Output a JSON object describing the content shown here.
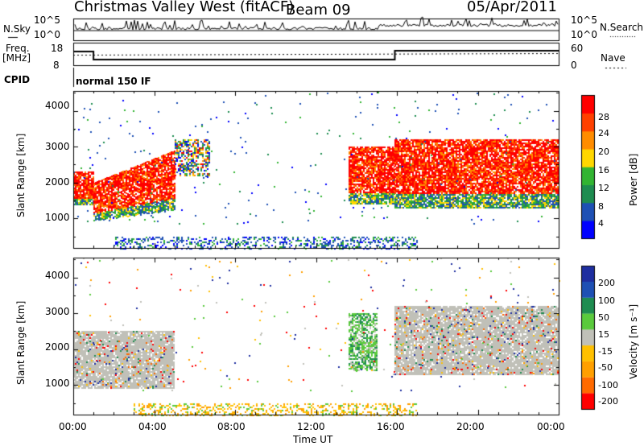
{
  "header": {
    "station": "Christmas Valley West (fitACF)",
    "beam": "Beam 09",
    "date": "05/Apr/2011"
  },
  "aux_panels": {
    "nsky": {
      "left_label": "N.Sky",
      "right_label": "N.Search",
      "left_ticks": [
        "10^5",
        "10^0"
      ],
      "right_ticks": [
        "10^5",
        "10^0"
      ]
    },
    "freq": {
      "left_label_line1": "Freq.",
      "left_label_line2": "[MHz]",
      "right_label": "Nave",
      "left_ticks": [
        "18",
        "8"
      ],
      "right_ticks": [
        "60",
        "0"
      ]
    },
    "cpid": {
      "label": "CPID",
      "mode": "normal 150 IF"
    }
  },
  "chart_data": [
    {
      "type": "heatmap",
      "panel": "power",
      "ylabel": "Slant Range [km]",
      "xlabel": "",
      "x_ticks": [
        "00:00",
        "04:00",
        "08:00",
        "12:00",
        "16:00",
        "20:00",
        "00:00"
      ],
      "xlim_hours": [
        0,
        24
      ],
      "y_ticks": [
        1000,
        2000,
        3000,
        4000
      ],
      "ylim": [
        180,
        4550
      ],
      "colorbar": {
        "label": "Power [dB]",
        "ticks": [
          "28",
          "24",
          "20",
          "16",
          "12",
          "8",
          "4"
        ],
        "colors": [
          "#0000ff",
          "#1e50b4",
          "#1e8c50",
          "#32b432",
          "#ffd700",
          "#ff8c00",
          "#ff4000",
          "#ff0000"
        ]
      },
      "echo_regions": [
        {
          "t_start": 0.0,
          "t_end": 1.0,
          "range_low": 1400,
          "range_high": 2300,
          "class": "strong"
        },
        {
          "t_start": 1.0,
          "t_end": 5.0,
          "range_low": 950,
          "range_high": 2600,
          "class": "strong"
        },
        {
          "t_start": 5.0,
          "t_end": 6.7,
          "range_low": 2200,
          "range_high": 3200,
          "class": "mixed"
        },
        {
          "t_start": 13.6,
          "t_end": 15.9,
          "range_low": 1400,
          "range_high": 3000,
          "class": "strong"
        },
        {
          "t_start": 15.9,
          "t_end": 24.0,
          "range_low": 1300,
          "range_high": 3200,
          "class": "strong"
        },
        {
          "t_start": 2.0,
          "t_end": 17.0,
          "range_low": 180,
          "range_high": 500,
          "class": "weak"
        }
      ]
    },
    {
      "type": "heatmap",
      "panel": "velocity",
      "ylabel": "Slant Range [km]",
      "xlabel": "Time UT",
      "x_ticks": [
        "00:00",
        "04:00",
        "08:00",
        "12:00",
        "16:00",
        "20:00",
        "00:00"
      ],
      "xlim_hours": [
        0,
        24
      ],
      "y_ticks": [
        1000,
        2000,
        3000,
        4000
      ],
      "ylim": [
        180,
        4550
      ],
      "colorbar": {
        "label": "Velocity [m s⁻¹]",
        "ticks": [
          "200",
          "100",
          "50",
          "15",
          "-15",
          "-50",
          "-100",
          "-200"
        ],
        "colors": [
          "#ff0000",
          "#ff6a00",
          "#ff9f00",
          "#ffc000",
          "#c0c0b8",
          "#5aca3c",
          "#1e8c50",
          "#1e50b4",
          "#1e2ea0"
        ]
      },
      "echo_regions": [
        {
          "t_start": 0.0,
          "t_end": 5.0,
          "range_low": 900,
          "range_high": 2500,
          "class": "ground"
        },
        {
          "t_start": 13.6,
          "t_end": 15.0,
          "range_low": 1400,
          "range_high": 3000,
          "class": "positive"
        },
        {
          "t_start": 15.9,
          "t_end": 24.0,
          "range_low": 1300,
          "range_high": 3200,
          "class": "ground"
        },
        {
          "t_start": 3.0,
          "t_end": 17.0,
          "range_low": 180,
          "range_high": 500,
          "class": "negative"
        }
      ]
    }
  ]
}
